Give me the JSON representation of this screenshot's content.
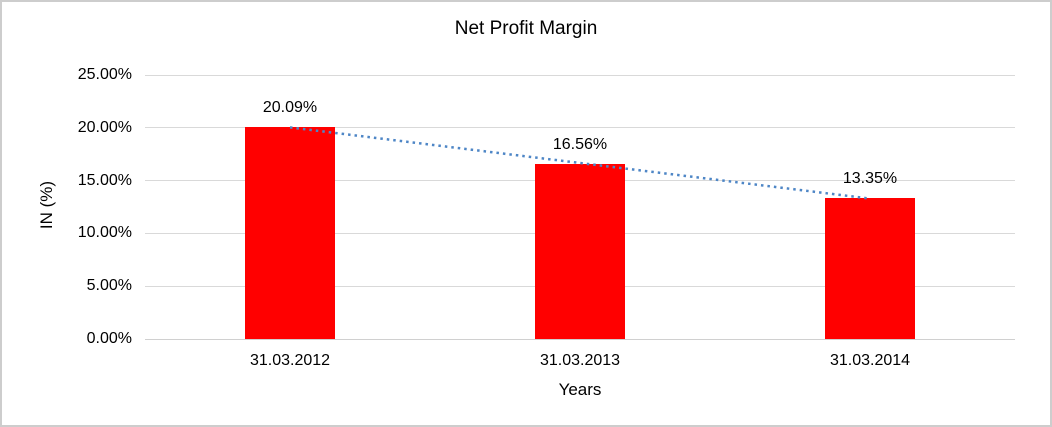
{
  "chart_data": {
    "type": "bar",
    "title": "Net Profit Margin",
    "categories": [
      "31.03.2012",
      "31.03.2013",
      "31.03.2014"
    ],
    "values": [
      20.09,
      16.56,
      13.35
    ],
    "data_labels": [
      "20.09%",
      "16.56%",
      "13.35%"
    ],
    "xlabel": "Years",
    "ylabel": "IN (%)",
    "ylim": [
      0,
      25
    ],
    "ytick_step": 5,
    "yticks": [
      0,
      5,
      10,
      15,
      20,
      25
    ],
    "ytick_labels": [
      "0.00%",
      "5.00%",
      "10.00%",
      "15.00%",
      "20.00%",
      "25.00%"
    ],
    "grid": true,
    "legend": "none",
    "bar_color": "#ff0000",
    "gridline_color": "#d9d9d9",
    "trendline": {
      "type": "linear",
      "style": "dotted",
      "color": "#4e86c6"
    }
  }
}
